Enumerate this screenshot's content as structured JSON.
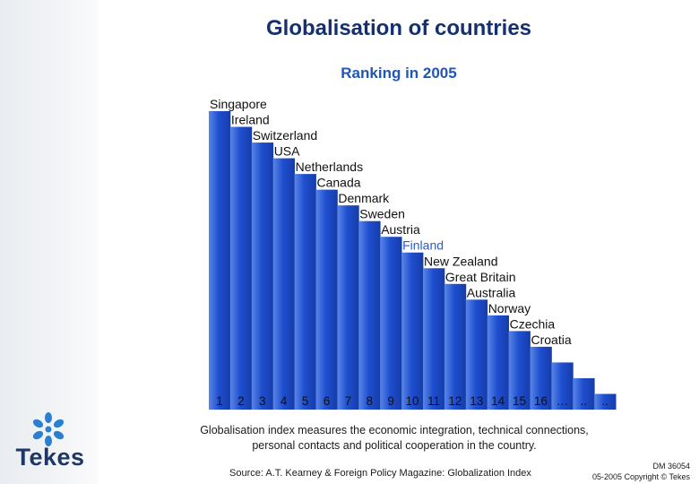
{
  "title": "Globalisation of countries",
  "subtitle": "Ranking in 2005",
  "chart_data": {
    "type": "bar",
    "title": "Ranking in 2005",
    "categories": [
      "Singapore",
      "Ireland",
      "Switzerland",
      "USA",
      "Netherlands",
      "Canada",
      "Denmark",
      "Sweden",
      "Austria",
      "Finland",
      "New Zealand",
      "Great Britain",
      "Australia",
      "Norway",
      "Czechia",
      "Croatia",
      "",
      "",
      ""
    ],
    "x_labels": [
      "1",
      "2",
      "3",
      "4",
      "5",
      "6",
      "7",
      "8",
      "9",
      "10",
      "11",
      "12",
      "13",
      "14",
      "15",
      "16",
      "…",
      "..",
      ".."
    ],
    "values": [
      19,
      18,
      17,
      16,
      15,
      14,
      13,
      12,
      11,
      10,
      9,
      8,
      7,
      6,
      5,
      4,
      3,
      2,
      1
    ],
    "highlight": "Finland",
    "bar_color": "#1f4fd0",
    "highlight_label_color": "#2a5bd4",
    "label_color": "#111111"
  },
  "description": "Globalisation index measures the economic integration, technical connections, personal contacts and political cooperation in the country.",
  "source": "Source: A.T. Kearney & Foreign Policy Magazine: Globalization Index",
  "doc_id": "DM 36054",
  "copyright": "05-2005 Copyright © Tekes",
  "logo": {
    "text": "Tekes",
    "icon": "tekes-snowflake-icon",
    "color": "#1e3766"
  }
}
